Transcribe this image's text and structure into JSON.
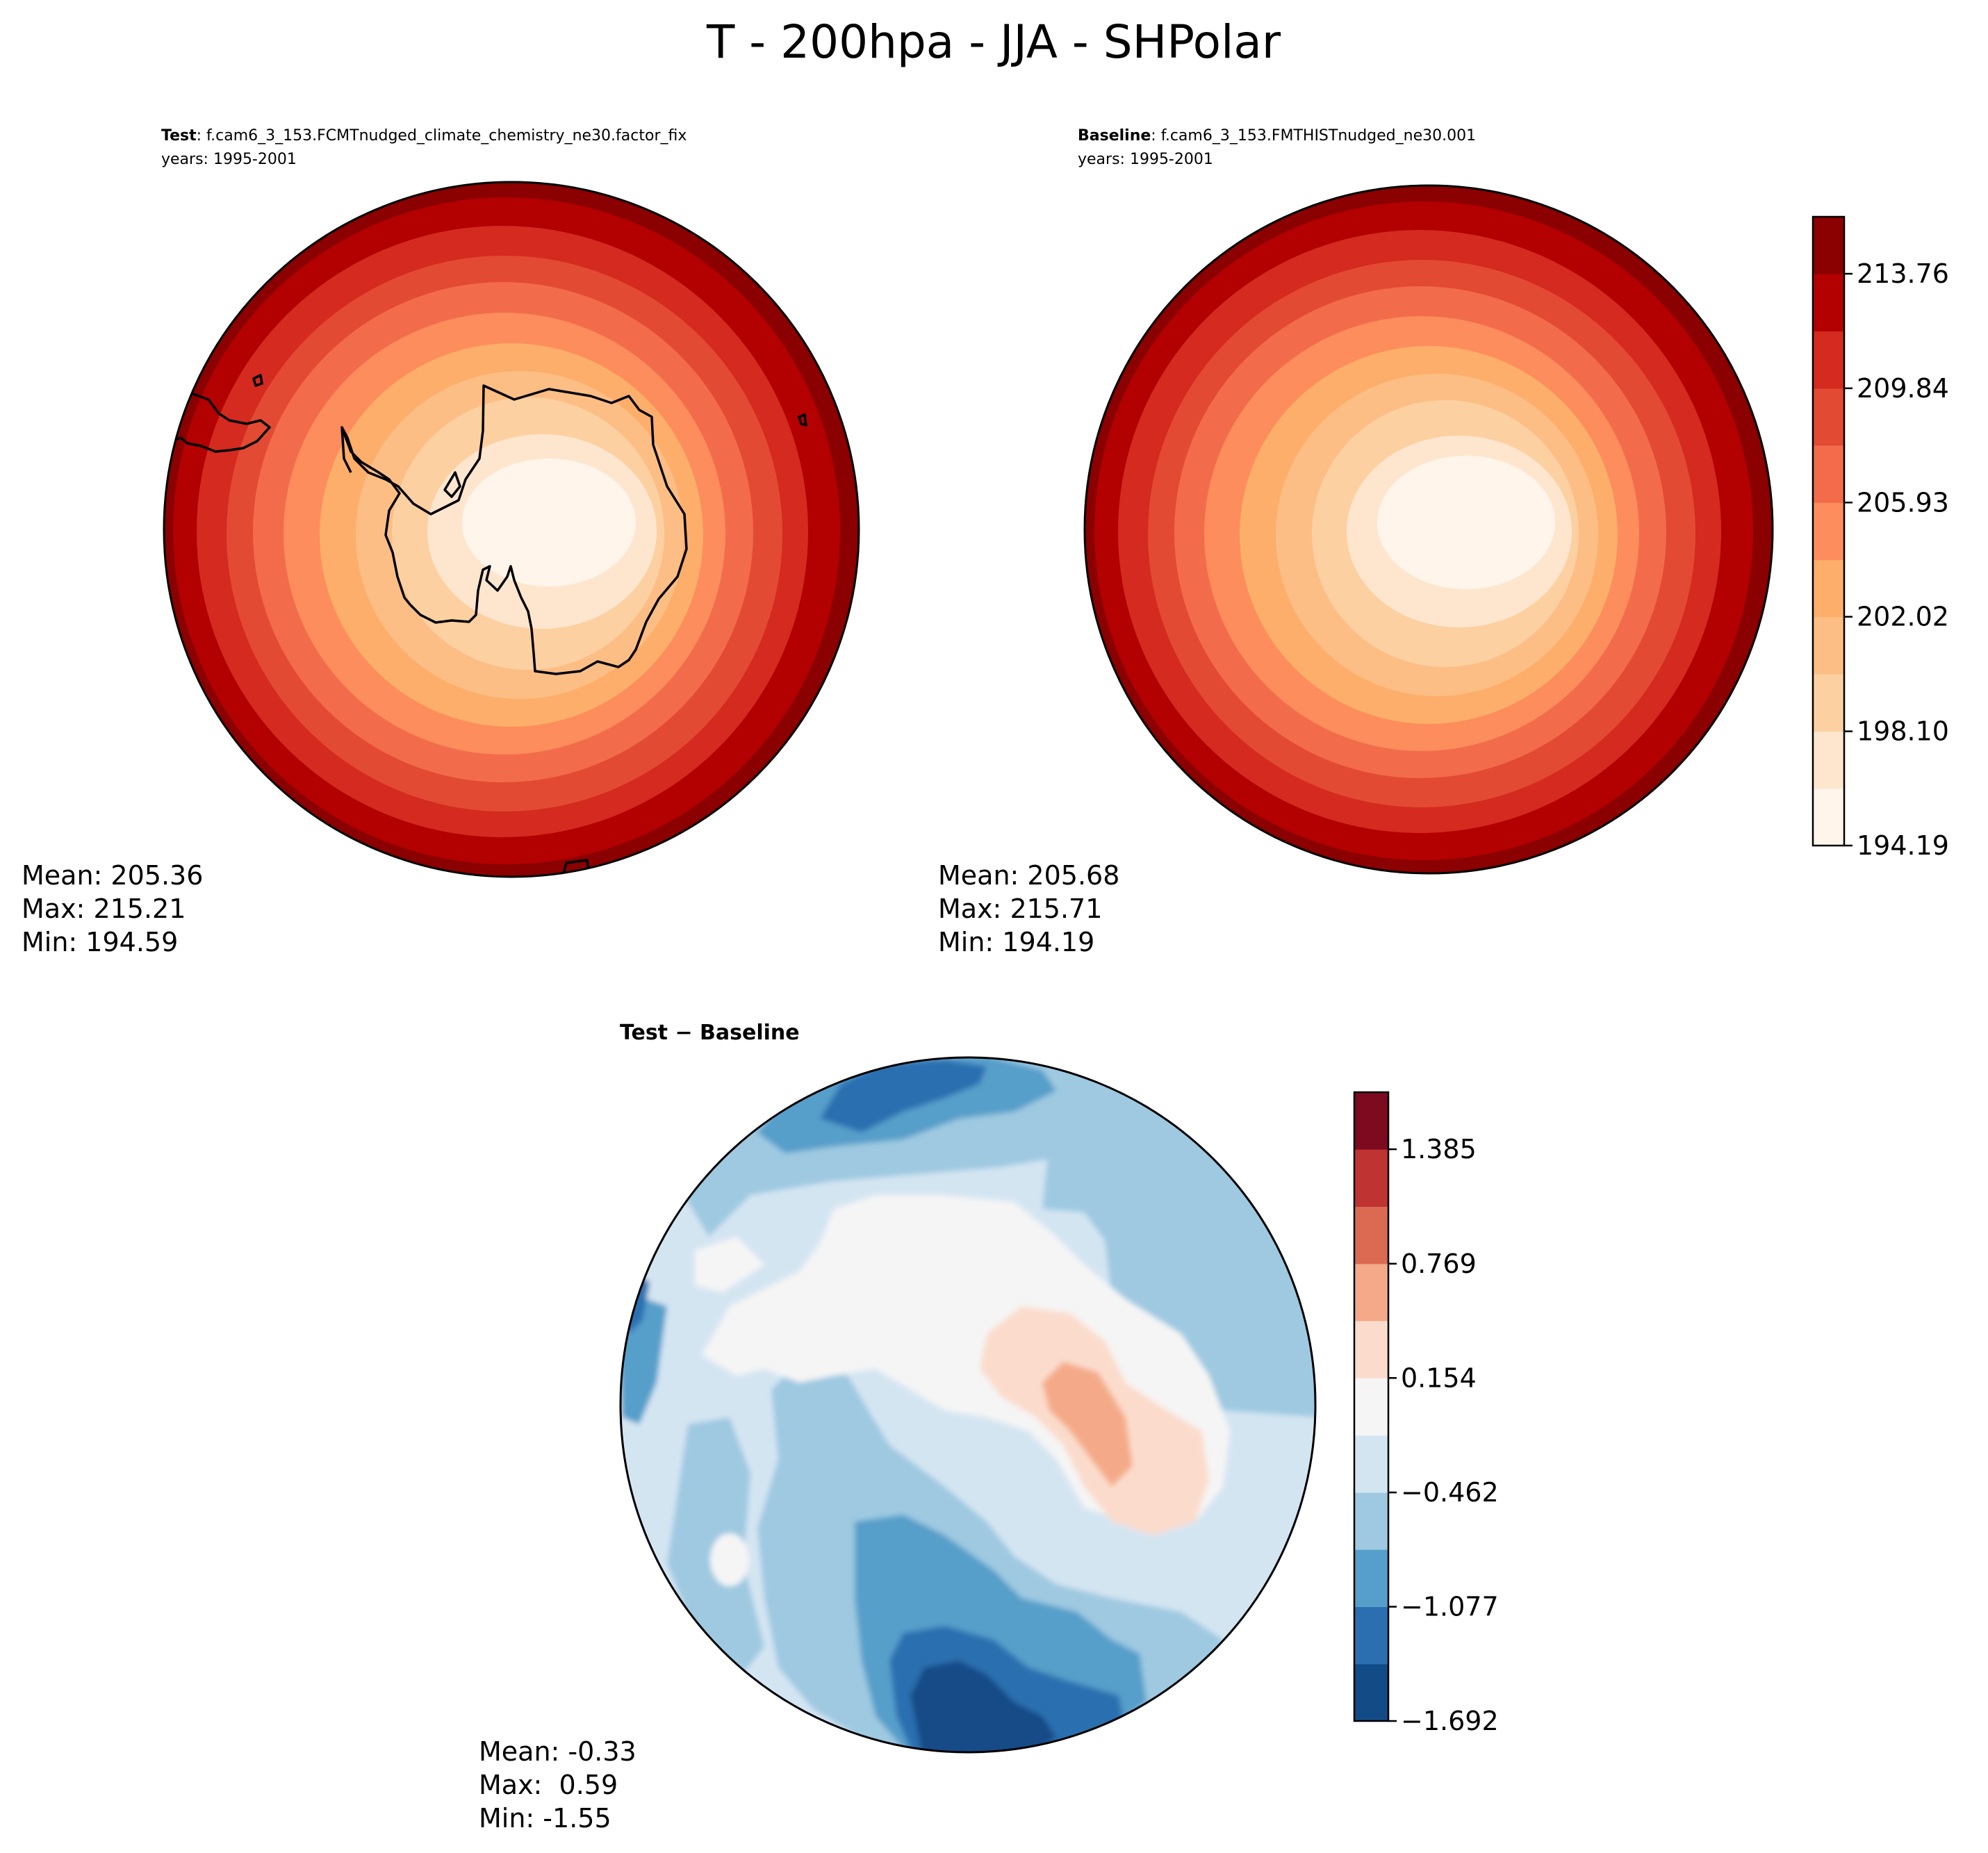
{
  "figure": {
    "title": "T - 200hpa - JJA - SHPolar"
  },
  "chart_data": [
    {
      "type": "heatmap",
      "panel": "test",
      "label_bold": "Test",
      "label_rest": ": f.cam6_3_153.FCMTnudged_climate_chemistry_ne30.factor_fix",
      "years": "years: 1995-2001",
      "stats": {
        "mean": "Mean: 205.36",
        "max": "Max: 215.21",
        "min": "Min: 194.59"
      },
      "projection": "south polar stereographic",
      "field_shape": "concentric rings, coldest (~194.6) over the South Pole rising to ~215.2 at the outer rim"
    },
    {
      "type": "heatmap",
      "panel": "baseline",
      "label_bold": "Baseline",
      "label_rest": ": f.cam6_3_153.FMTHISTnudged_ne30.001",
      "years": "years: 1995-2001",
      "stats": {
        "mean": "Mean: 205.68",
        "max": "Max: 215.71",
        "min": "Min: 194.19"
      },
      "projection": "south polar stereographic",
      "field_shape": "concentric rings, coldest (~194.2) over the South Pole rising to ~215.7 at the outer rim"
    },
    {
      "type": "heatmap",
      "panel": "difference",
      "label": "Test − Baseline",
      "stats": {
        "mean": "Mean: -0.33",
        "max": "Max:  0.59",
        "min": "Min: -1.55"
      },
      "projection": "south polar stereographic",
      "field_shape": "mostly weak negative differences, strongest negative (~-1.5) near the bottom edge; weak positive (~0.5) east of Antarctica"
    }
  ],
  "colorbars": {
    "main": {
      "levels": [
        194.19,
        196.15,
        198.1,
        200.06,
        202.02,
        203.97,
        205.93,
        207.89,
        209.84,
        211.8,
        213.76,
        215.71
      ],
      "tick_labels": [
        "194.19",
        "198.10",
        "202.02",
        "205.93",
        "209.84",
        "213.76"
      ],
      "colors": [
        "#fff5eb",
        "#fee6ce",
        "#fdd0a2",
        "#fdbe85",
        "#fdae6b",
        "#fd8d5c",
        "#f26c4b",
        "#e34a33",
        "#d42a1f",
        "#b30000",
        "#8b0000"
      ]
    },
    "diff": {
      "levels": [
        -1.692,
        -1.385,
        -1.077,
        -0.769,
        -0.462,
        -0.154,
        0.154,
        0.462,
        0.769,
        1.077,
        1.385,
        1.692
      ],
      "tick_labels": [
        "−1.692",
        "−1.077",
        "−0.462",
        "0.154",
        "0.769",
        "1.385"
      ],
      "colors": [
        "#134b87",
        "#2b6fb0",
        "#569fca",
        "#9ec9e1",
        "#d4e5f2",
        "#f5f5f5",
        "#fbdccc",
        "#f4aa88",
        "#db6a53",
        "#c03333",
        "#7d0b20"
      ]
    }
  }
}
